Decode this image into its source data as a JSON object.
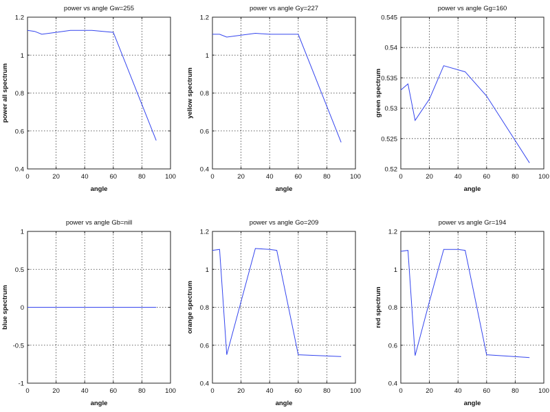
{
  "chart_data": [
    {
      "type": "line",
      "title": "power vs angle Gw=255",
      "xlabel": "angle",
      "ylabel": "power all spectrum",
      "xlim": [
        0,
        100
      ],
      "ylim": [
        0.4,
        1.2
      ],
      "xticks": [
        "0",
        "20",
        "40",
        "60",
        "80",
        "100"
      ],
      "yticks": [
        "0.4",
        "0.6",
        "0.8",
        "1",
        "1.2"
      ],
      "grid": true,
      "color": "#3344ee",
      "series": [
        {
          "x": [
            0,
            5,
            10,
            20,
            30,
            40,
            45,
            60,
            90
          ],
          "values": [
            1.13,
            1.125,
            1.11,
            1.12,
            1.13,
            1.13,
            1.13,
            1.12,
            0.55
          ]
        }
      ]
    },
    {
      "type": "line",
      "title": "power vs angle Gy=227",
      "xlabel": "angle",
      "ylabel": "yellow spectrum",
      "xlim": [
        0,
        100
      ],
      "ylim": [
        0.4,
        1.2
      ],
      "xticks": [
        "0",
        "20",
        "40",
        "60",
        "80",
        "100"
      ],
      "yticks": [
        "0.4",
        "0.6",
        "0.8",
        "1",
        "1.2"
      ],
      "grid": true,
      "color": "#3344ee",
      "series": [
        {
          "x": [
            0,
            5,
            10,
            20,
            30,
            40,
            45,
            60,
            90
          ],
          "values": [
            1.11,
            1.11,
            1.095,
            1.105,
            1.115,
            1.11,
            1.11,
            1.11,
            0.54
          ]
        }
      ]
    },
    {
      "type": "line",
      "title": "power vs angle Gg=160",
      "xlabel": "angle",
      "ylabel": "green spectrum",
      "xlim": [
        0,
        100
      ],
      "ylim": [
        0.52,
        0.545
      ],
      "xticks": [
        "0",
        "20",
        "40",
        "60",
        "80",
        "100"
      ],
      "yticks": [
        "0.52",
        "0.525",
        "0.53",
        "0.535",
        "0.54",
        "0.545"
      ],
      "grid": true,
      "color": "#3344ee",
      "series": [
        {
          "x": [
            0,
            5,
            10,
            20,
            30,
            45,
            60,
            90
          ],
          "values": [
            0.533,
            0.534,
            0.528,
            0.5315,
            0.537,
            0.536,
            0.532,
            0.521
          ]
        }
      ]
    },
    {
      "type": "line",
      "title": "power vs angle Gb=nill",
      "xlabel": "angle",
      "ylabel": "blue spectrum",
      "xlim": [
        0,
        100
      ],
      "ylim": [
        -1,
        1
      ],
      "xticks": [
        "0",
        "20",
        "40",
        "60",
        "80",
        "100"
      ],
      "yticks": [
        "-1",
        "-0.5",
        "0",
        "0.5",
        "1"
      ],
      "grid": true,
      "color": "#3344ee",
      "series": [
        {
          "x": [
            0,
            90
          ],
          "values": [
            0,
            0
          ]
        }
      ]
    },
    {
      "type": "line",
      "title": "power vs angle Go=209",
      "xlabel": "angle",
      "ylabel": "orange spectrum",
      "xlim": [
        0,
        100
      ],
      "ylim": [
        0.4,
        1.2
      ],
      "xticks": [
        "0",
        "20",
        "40",
        "60",
        "80",
        "100"
      ],
      "yticks": [
        "0.4",
        "0.6",
        "0.8",
        "1",
        "1.2"
      ],
      "grid": true,
      "color": "#3344ee",
      "series": [
        {
          "x": [
            0,
            5,
            10,
            20,
            30,
            40,
            45,
            60,
            90
          ],
          "values": [
            1.1,
            1.105,
            0.55,
            0.83,
            1.11,
            1.105,
            1.1,
            0.55,
            0.54
          ]
        }
      ]
    },
    {
      "type": "line",
      "title": "power vs angle Gr=194",
      "xlabel": "angle",
      "ylabel": "red spectrum",
      "xlim": [
        0,
        100
      ],
      "ylim": [
        0.4,
        1.2
      ],
      "xticks": [
        "0",
        "20",
        "40",
        "60",
        "80",
        "100"
      ],
      "yticks": [
        "0.4",
        "0.6",
        "0.8",
        "1",
        "1.2"
      ],
      "grid": true,
      "color": "#3344ee",
      "series": [
        {
          "x": [
            0,
            5,
            10,
            20,
            30,
            40,
            45,
            60,
            90
          ],
          "values": [
            1.095,
            1.1,
            0.545,
            0.83,
            1.105,
            1.105,
            1.1,
            0.55,
            0.535
          ]
        }
      ]
    }
  ]
}
